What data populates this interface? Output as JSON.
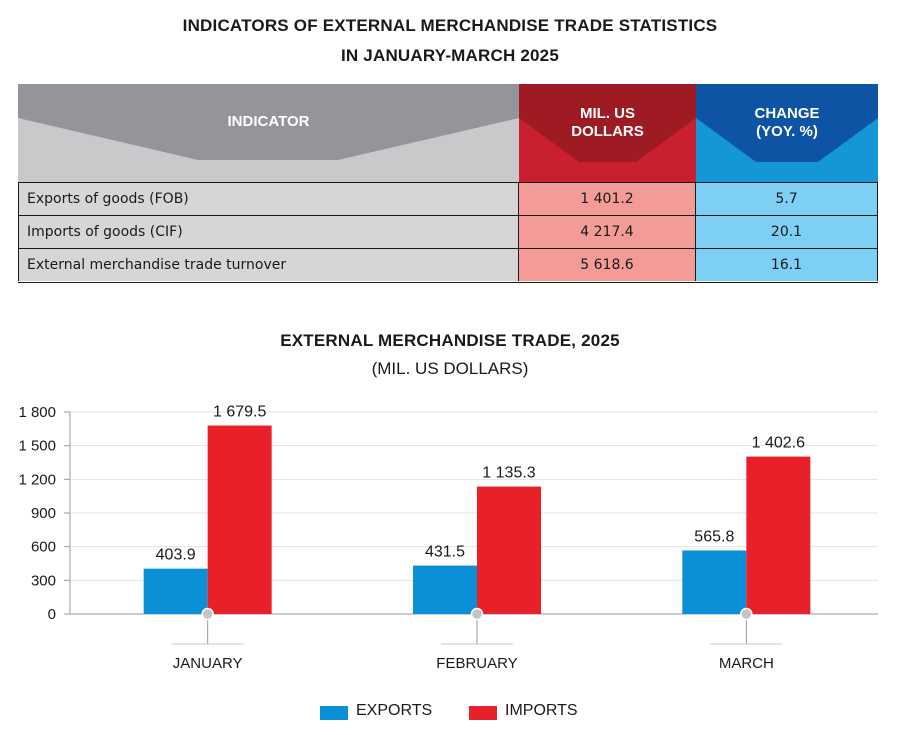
{
  "table": {
    "title_line1": "INDICATORS OF EXTERNAL MERCHANDISE TRADE STATISTICS",
    "title_line2": "IN JANUARY-MARCH 2025",
    "headers": {
      "indicator": "INDICATOR",
      "usd_line1": "MIL. US",
      "usd_line2": "DOLLARS",
      "change_line1": "CHANGE",
      "change_line2": "(YOY. %)"
    },
    "rows": [
      {
        "indicator": "Exports of goods (FOB)",
        "usd": "1 401.2",
        "change": "5.7"
      },
      {
        "indicator": "Imports of goods (CIF)",
        "usd": "4 217.4",
        "change": "20.1"
      },
      {
        "indicator": "External merchandise trade turnover",
        "usd": "5 618.6",
        "change": "16.1"
      }
    ],
    "colors": {
      "indicator_header": "#939598",
      "indicator_cell": "#d6d6d7",
      "usd_header": "#c8202f",
      "usd_header_dark": "#9e1b24",
      "usd_cell": "#f39b96",
      "change_header": "#1596d6",
      "change_header_dark": "#0d55a4",
      "change_cell": "#7dd0f3"
    }
  },
  "chart_data": {
    "type": "bar",
    "title": "EXTERNAL MERCHANDISE TRADE, 2025",
    "subtitle": "(MIL. US DOLLARS)",
    "categories": [
      "JANUARY",
      "FEBRUARY",
      "MARCH"
    ],
    "series": [
      {
        "name": "EXPORTS",
        "values": [
          403.9,
          431.5,
          565.8
        ],
        "labels": [
          "403.9",
          "431.5",
          "565.8"
        ],
        "color": "#0b8fd6"
      },
      {
        "name": "IMPORTS",
        "values": [
          1679.5,
          1135.3,
          1402.6
        ],
        "labels": [
          "1 679.5",
          "1 135.3",
          "1 402.6"
        ],
        "color": "#e8202a"
      }
    ],
    "ylim": [
      0,
      1800
    ],
    "yticks": [
      0,
      300,
      600,
      900,
      1200,
      1500,
      1800
    ],
    "ytick_labels": [
      "0",
      "300",
      "600",
      "900",
      "1 200",
      "1 500",
      "1 800"
    ],
    "grid": true,
    "legend_position": "bottom-center",
    "xlabel": "",
    "ylabel": ""
  }
}
